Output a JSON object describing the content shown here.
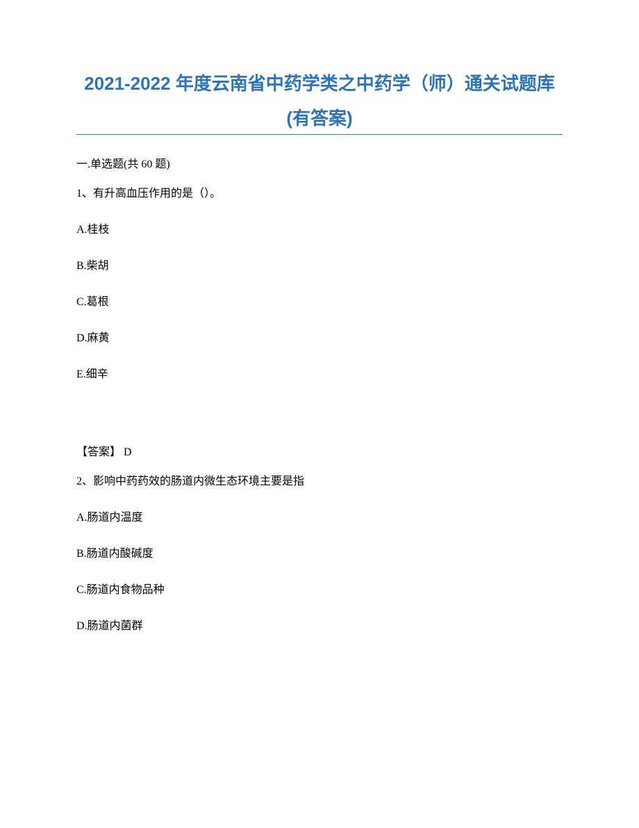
{
  "title_line1": "2021-2022 年度云南省中药学类之中药学（师）通关试题库",
  "title_line2": "(有答案)",
  "section_header": "一.单选题(共 60 题)",
  "q1": {
    "text": "1、有升高血压作用的是（）。",
    "options": {
      "A": "A.桂枝",
      "B": "B.柴胡",
      "C": "C.葛根",
      "D": "D.麻黄",
      "E": "E.细辛"
    },
    "answer": "【答案】 D"
  },
  "q2": {
    "text": "2、影响中药药效的肠道内微生态环境主要是指",
    "options": {
      "A": "A.肠道内温度",
      "B": "B.肠道内酸碱度",
      "C": "C.肠道内食物品种",
      "D": "D.肠道内菌群"
    }
  },
  "colors": {
    "title_color": "#2e74b5",
    "hr_color": "#2e74b5",
    "text_color": "#000000",
    "background": "#ffffff"
  },
  "typography": {
    "title_fontsize": 26,
    "body_fontsize": 16,
    "title_fontfamily": "Microsoft YaHei",
    "body_fontfamily": "SimSun"
  }
}
